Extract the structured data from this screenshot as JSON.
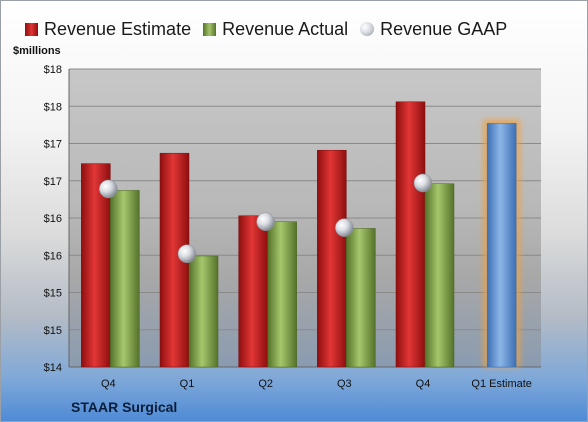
{
  "legend": {
    "estimate": "Revenue Estimate",
    "actual": "Revenue Actual",
    "gaap": "Revenue GAAP"
  },
  "unit_label": "$millions",
  "company": "STAAR Surgical",
  "colors": {
    "estimate": "#d42a2a",
    "actual": "#8fb05a",
    "gaap": "#c8ccd4",
    "estimate_future": "#6f9fd8",
    "future_glow": "#f0a040"
  },
  "chart_data": {
    "type": "bar",
    "categories": [
      "Q4",
      "Q1",
      "Q2",
      "Q3",
      "Q4",
      "Q1 Estimate"
    ],
    "series": [
      {
        "name": "Revenue Estimate",
        "values": [
          16.73,
          16.87,
          16.03,
          16.91,
          17.56,
          17.27
        ]
      },
      {
        "name": "Revenue Actual",
        "values": [
          16.37,
          15.49,
          15.95,
          15.86,
          16.46,
          null
        ]
      },
      {
        "name": "Revenue GAAP",
        "values": [
          16.39,
          15.52,
          15.95,
          15.87,
          16.47,
          null
        ]
      }
    ],
    "ylim": [
      14,
      18
    ],
    "yticks": [
      14,
      14.5,
      15,
      15.5,
      16,
      16.5,
      17,
      17.5,
      18
    ],
    "ytick_labels": [
      "$14",
      "$15",
      "$15",
      "$16",
      "$16",
      "$17",
      "$17",
      "$18",
      "$18"
    ],
    "grid": true
  }
}
